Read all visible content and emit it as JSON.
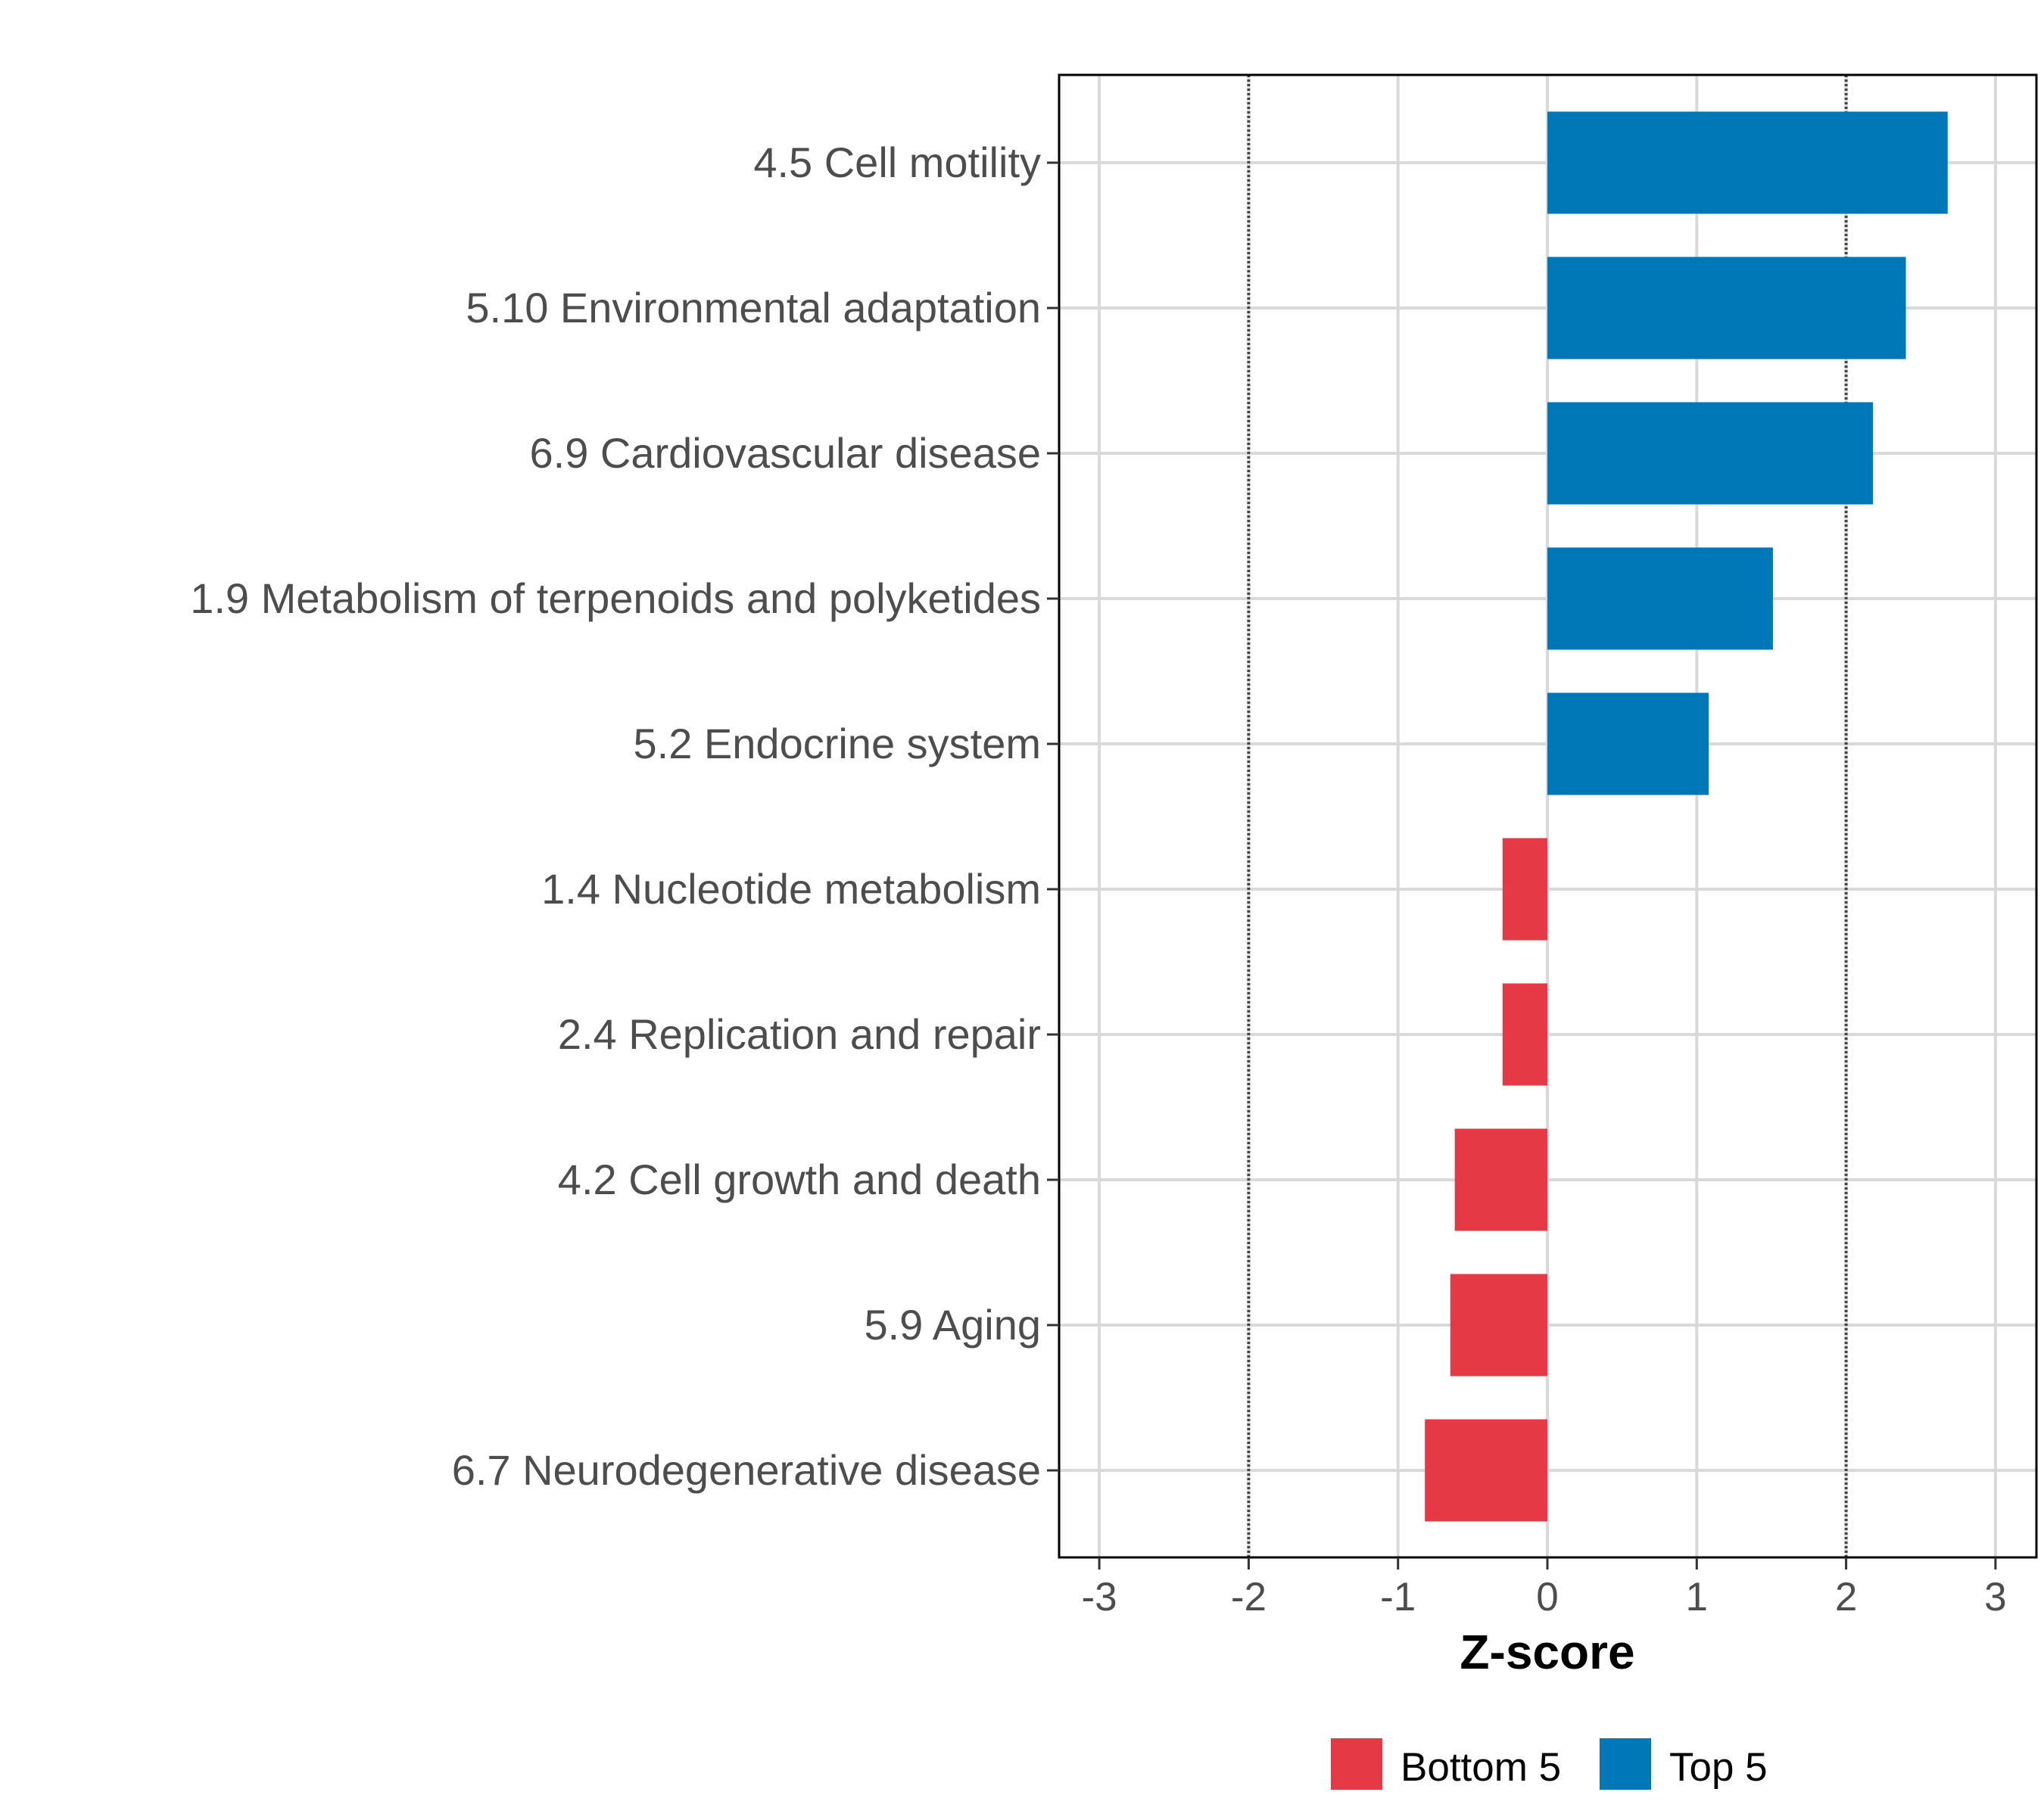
{
  "chart_data": {
    "type": "bar",
    "orientation": "horizontal",
    "title": "",
    "xlabel": "Z-score",
    "ylabel": "",
    "xlim": [
      -3.3,
      3.3
    ],
    "xticks": [
      -3,
      -2,
      -1,
      0,
      1,
      2,
      3
    ],
    "xtick_labels": [
      "-3",
      "-2",
      "-1",
      "0",
      "1",
      "2",
      "3"
    ],
    "reference_lines": [
      -2,
      2
    ],
    "grid": true,
    "categories": [
      "4.5 Cell motility",
      "5.10 Environmental adaptation",
      "6.9 Cardiovascular disease",
      "1.9 Metabolism of terpenoids and polyketides",
      "5.2 Endocrine system",
      "1.4 Nucleotide metabolism",
      "2.4 Replication and repair",
      "4.2 Cell growth and death",
      "5.9 Aging",
      "6.7 Neurodegenerative disease"
    ],
    "values": [
      2.68,
      2.4,
      2.18,
      1.51,
      1.08,
      -0.3,
      -0.3,
      -0.62,
      -0.65,
      -0.82
    ],
    "groups": [
      "Top 5",
      "Top 5",
      "Top 5",
      "Top 5",
      "Top 5",
      "Bottom 5",
      "Bottom 5",
      "Bottom 5",
      "Bottom 5",
      "Bottom 5"
    ],
    "legend": {
      "placement": "bottom",
      "entries": [
        {
          "label": "Bottom 5",
          "color": "#E63946"
        },
        {
          "label": "Top 5",
          "color": "#0077B6"
        }
      ]
    }
  }
}
